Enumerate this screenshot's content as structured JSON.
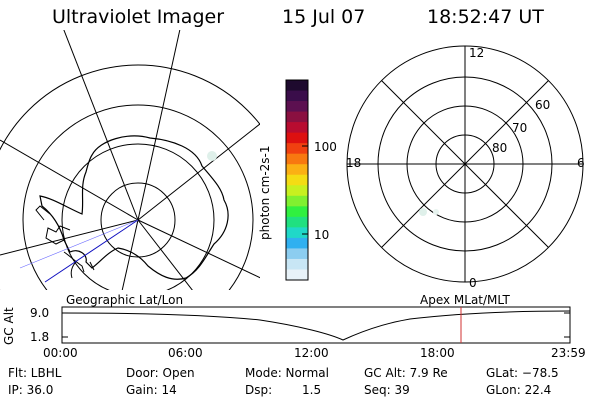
{
  "header": {
    "title": "Ultraviolet Imager",
    "date": "15 Jul 07",
    "time": "18:52:47 UT"
  },
  "colorbar": {
    "unit_label": "photon cm-2s-1",
    "ticks": [
      "100",
      "10"
    ],
    "colors": [
      "#1e0a2e",
      "#3a0d4a",
      "#5c1050",
      "#8a1040",
      "#b80c30",
      "#dd1010",
      "#f04010",
      "#f87810",
      "#fbb014",
      "#f4dc14",
      "#c8f020",
      "#80f030",
      "#30f040",
      "#20e080",
      "#20d8c8",
      "#30b0f0",
      "#8ccdf0",
      "#c8e6f5",
      "#e8f2f8"
    ]
  },
  "polar_plot": {
    "mlt_labels": {
      "top": "12",
      "left": "18",
      "right": "6",
      "bottom": "0"
    },
    "lat_labels": [
      "60",
      "70",
      "80"
    ]
  },
  "labels": {
    "geo": "Geographic Lat/Lon",
    "apex": "Apex MLat/MLT"
  },
  "timeline": {
    "yaxis_label": "GC Alt",
    "y_ticks": [
      "9.0",
      "1.8"
    ],
    "x_ticks": [
      "00:00",
      "06:00",
      "12:00",
      "18:00",
      "23:59"
    ]
  },
  "info": {
    "flt": "Flt: LBHL",
    "ip": "IP: 36.0",
    "door": "Door: Open",
    "gain": "Gain: 14",
    "mode": "Mode: Normal",
    "dsp_label": "Dsp:",
    "dsp_value": "1.5",
    "gc_alt": "GC Alt: 7.9 Re",
    "seq": "Seq: 39",
    "glat": "GLat: −78.5",
    "glon": "GLon: 22.4"
  }
}
